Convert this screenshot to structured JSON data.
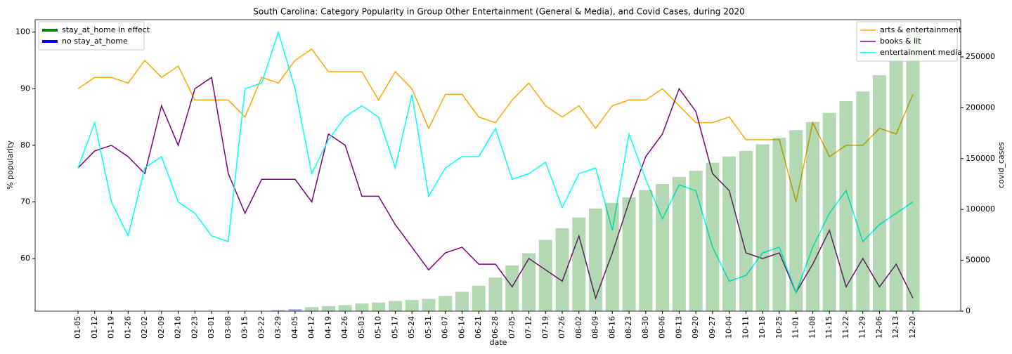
{
  "chart_data": {
    "type": "line",
    "title": "South Carolina: Category Popularity in Group Other Entertainment (General & Media), and Covid Cases, during 2020",
    "x_label": "date",
    "y_label": "% popularity",
    "y2_label": "covid_cases",
    "categories": [
      "01-05",
      "01-12",
      "01-19",
      "01-26",
      "02-02",
      "02-09",
      "02-16",
      "02-23",
      "03-01",
      "03-08",
      "03-15",
      "03-22",
      "03-29",
      "04-05",
      "04-12",
      "04-19",
      "04-26",
      "05-03",
      "05-10",
      "05-17",
      "05-24",
      "05-31",
      "06-07",
      "06-14",
      "06-21",
      "06-28",
      "07-05",
      "07-12",
      "07-19",
      "07-26",
      "08-02",
      "08-09",
      "08-16",
      "08-23",
      "08-30",
      "09-06",
      "09-13",
      "09-20",
      "09-27",
      "10-04",
      "10-11",
      "10-18",
      "10-25",
      "11-01",
      "11-08",
      "11-15",
      "11-22",
      "11-29",
      "12-06",
      "12-13",
      "12-20"
    ],
    "ylim": [
      50.7,
      102.2
    ],
    "yticks": [
      60,
      70,
      80,
      90,
      100
    ],
    "y2lim": [
      0,
      286600
    ],
    "y2ticks": [
      0,
      50000,
      100000,
      150000,
      200000,
      250000
    ],
    "grid": false,
    "legend_position": "upper right",
    "stay_at_home_legend_position": "upper left",
    "stay_at_home_legend": [
      {
        "label": "stay_at_home in effect",
        "color": "green"
      },
      {
        "label": "no stay_at_home",
        "color": "blue"
      }
    ],
    "series": [
      {
        "name": "arts & entertainment",
        "color": "orange",
        "values": [
          90,
          92,
          92,
          91,
          95,
          92,
          94,
          88,
          88,
          88,
          85,
          92,
          91,
          95,
          97,
          93,
          93,
          93,
          88,
          93,
          90,
          83,
          89,
          89,
          85,
          84,
          88,
          91,
          87,
          85,
          87,
          83,
          87,
          88,
          88,
          90,
          87,
          84,
          84,
          85,
          81,
          81,
          81,
          70,
          84,
          78,
          80,
          80,
          83,
          82,
          89
        ]
      },
      {
        "name": "books & lit",
        "color": "purple",
        "values": [
          76,
          79,
          80,
          78,
          75,
          87,
          80,
          90,
          92,
          75,
          68,
          74,
          74,
          74,
          70,
          82,
          80,
          71,
          71,
          66,
          62,
          58,
          61,
          62,
          59,
          59,
          55,
          60,
          58,
          56,
          64,
          53,
          61,
          70,
          78,
          82,
          90,
          86,
          75,
          72,
          61,
          60,
          61,
          54,
          59,
          65,
          55,
          60,
          55,
          59,
          53
        ]
      },
      {
        "name": "entertainment media",
        "color": "cyan",
        "values": [
          76,
          84,
          70,
          64,
          76,
          78,
          70,
          68,
          64,
          63,
          90,
          91,
          100,
          90,
          75,
          81,
          85,
          87,
          85,
          76,
          89,
          71,
          76,
          78,
          78,
          83,
          74,
          75,
          77,
          69,
          75,
          76,
          65,
          82,
          74,
          67,
          73,
          72,
          62,
          56,
          57,
          61,
          62,
          54,
          62,
          68,
          72,
          63,
          66,
          68,
          70
        ]
      },
      {
        "type": "bar",
        "axis": "y2",
        "opacity": 0.3,
        "colors": [
          "green",
          "green",
          "green",
          "green",
          "green",
          "green",
          "green",
          "green",
          "green",
          "green",
          "green",
          "green",
          "blue",
          "blue",
          "green",
          "green",
          "green",
          "green",
          "green",
          "green",
          "green",
          "green",
          "green",
          "green",
          "green",
          "green",
          "green",
          "green",
          "green",
          "green",
          "green",
          "green",
          "green",
          "green",
          "green",
          "green",
          "green",
          "green",
          "green",
          "green",
          "green",
          "green",
          "green",
          "green",
          "green",
          "green",
          "green",
          "green",
          "green",
          "green",
          "green"
        ],
        "values": [
          0,
          0,
          0,
          0,
          0,
          0,
          0,
          0,
          0,
          0,
          0,
          0,
          1000,
          2000,
          4000,
          5000,
          6000,
          7500,
          8500,
          10000,
          11000,
          12000,
          15000,
          19000,
          25000,
          33000,
          45000,
          57000,
          70000,
          81500,
          92000,
          101000,
          106500,
          112000,
          119000,
          125000,
          132000,
          138000,
          146000,
          152000,
          157500,
          164000,
          170500,
          178000,
          186000,
          195000,
          206500,
          216000,
          232000,
          252500,
          273500
        ]
      }
    ]
  }
}
